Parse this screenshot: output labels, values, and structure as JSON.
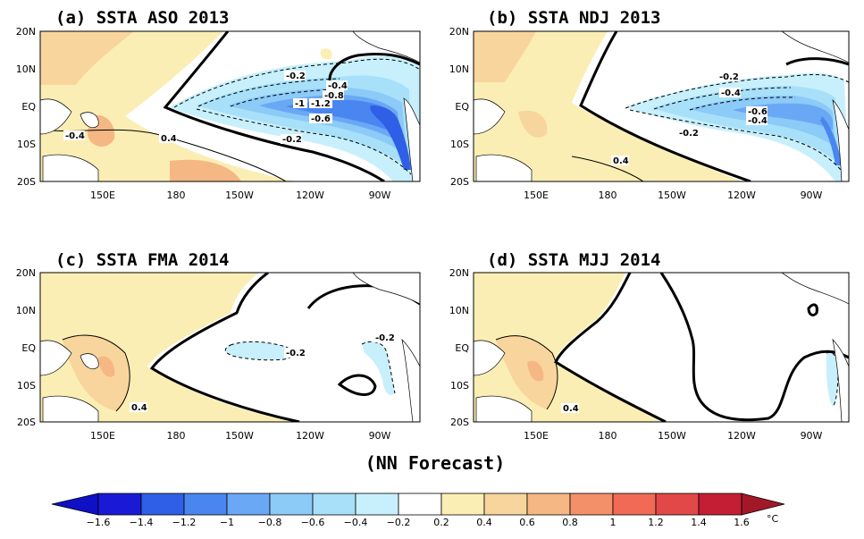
{
  "footer": "(NN Forecast)",
  "units": "°C",
  "colorbar": {
    "labels": [
      "-1.6",
      "-1.4",
      "-1.2",
      "-1",
      "-0.8",
      "-0.6",
      "-0.4",
      "-0.2",
      "0.2",
      "0.4",
      "0.6",
      "0.8",
      "1",
      "1.2",
      "1.4",
      "1.6"
    ],
    "colors": [
      "#1a1ad6",
      "#2e5fe6",
      "#4a86f0",
      "#6aa8f6",
      "#8ccaf8",
      "#a8e0fa",
      "#c8f0fc",
      "#ffffff",
      "#fbeeb4",
      "#f8d59c",
      "#f5b784",
      "#f3906a",
      "#f06a55",
      "#e24848",
      "#c41e34"
    ],
    "end_low": "#0f0fc6",
    "end_high": "#a31828"
  },
  "axes": {
    "lat_labels": [
      "20N",
      "10N",
      "EQ",
      "10S",
      "20S"
    ],
    "lon_labels": [
      "150E",
      "180",
      "150W",
      "120W",
      "90W"
    ]
  },
  "panels": [
    {
      "id": "a",
      "title": "(a) SSTA  ASO 2013",
      "contour_labels": [
        "-0.2",
        "-0.4",
        "-0.8",
        "-1",
        "-1.2",
        "-0.6",
        "-0.2",
        "0.4",
        "-0.4"
      ]
    },
    {
      "id": "b",
      "title": "(b) SSTA  NDJ 2013",
      "contour_labels": [
        "-0.2",
        "-0.4",
        "-0.6",
        "-0.4",
        "-0.2",
        "0.4"
      ]
    },
    {
      "id": "c",
      "title": "(c) SSTA  FMA 2014",
      "contour_labels": [
        "-0.2",
        "-0.2",
        "0.4"
      ]
    },
    {
      "id": "d",
      "title": "(d) SSTA  MJJ 2014",
      "contour_labels": [
        "0.4"
      ]
    }
  ]
}
